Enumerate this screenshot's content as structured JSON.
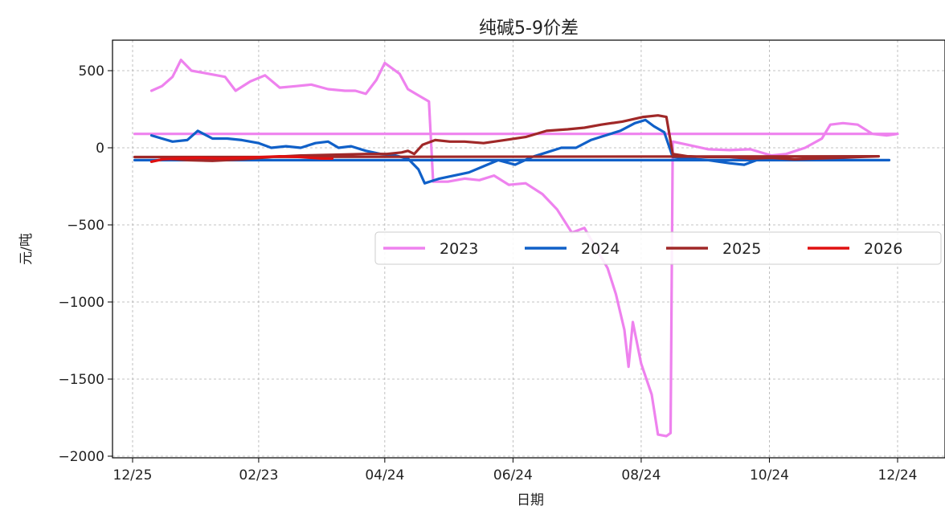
{
  "chart_data": {
    "type": "line",
    "title": "纯碱5-9价差",
    "xlabel": "日期",
    "ylabel": "元/吨",
    "xlim": [
      "12/25",
      "12/31"
    ],
    "ylim": [
      -2000,
      700
    ],
    "x_ticks": [
      "12/25",
      "02/23",
      "04/24",
      "06/24",
      "08/24",
      "10/24",
      "12/24"
    ],
    "y_ticks": [
      500,
      0,
      -500,
      -1000,
      -1500,
      -2000
    ],
    "y_tick_labels": [
      "500",
      "0",
      "−500",
      "−1000",
      "−1500",
      "−2000"
    ],
    "grid": true,
    "legend_position": "center-right",
    "series": [
      {
        "name": "2023",
        "color": "#EE82EE",
        "points": [
          [
            "01/03",
            370
          ],
          [
            "01/08",
            400
          ],
          [
            "01/13",
            460
          ],
          [
            "01/17",
            570
          ],
          [
            "01/22",
            500
          ],
          [
            "01/30",
            480
          ],
          [
            "02/07",
            460
          ],
          [
            "02/12",
            370
          ],
          [
            "02/19",
            430
          ],
          [
            "02/26",
            470
          ],
          [
            "03/05",
            390
          ],
          [
            "03/13",
            400
          ],
          [
            "03/20",
            410
          ],
          [
            "03/28",
            380
          ],
          [
            "04/05",
            370
          ],
          [
            "04/10",
            370
          ],
          [
            "04/15",
            350
          ],
          [
            "04/20",
            440
          ],
          [
            "04/24",
            550
          ],
          [
            "05/01",
            480
          ],
          [
            "05/05",
            380
          ],
          [
            "05/10",
            340
          ],
          [
            "05/15",
            300
          ],
          [
            "05/17",
            -220
          ],
          [
            "05/24",
            -220
          ],
          [
            "06/01",
            -200
          ],
          [
            "06/08",
            -210
          ],
          [
            "06/15",
            -180
          ],
          [
            "06/22",
            -240
          ],
          [
            "06/30",
            -230
          ],
          [
            "07/08",
            -300
          ],
          [
            "07/15",
            -400
          ],
          [
            "07/22",
            -550
          ],
          [
            "07/28",
            -520
          ],
          [
            "08/02",
            -640
          ],
          [
            "08/08",
            -780
          ],
          [
            "08/12",
            -950
          ],
          [
            "08/16",
            -1180
          ],
          [
            "08/18",
            -1420
          ],
          [
            "08/20",
            -1130
          ],
          [
            "08/24",
            -1400
          ],
          [
            "08/29",
            -1600
          ],
          [
            "09/01",
            -1860
          ],
          [
            "09/05",
            -1870
          ],
          [
            "09/07",
            -1850
          ],
          [
            "09/08",
            40
          ],
          [
            "09/15",
            20
          ],
          [
            "09/25",
            -10
          ],
          [
            "10/05",
            -15
          ],
          [
            "10/15",
            -10
          ],
          [
            "10/25",
            -50
          ],
          [
            "11/01",
            -40
          ],
          [
            "11/10",
            0
          ],
          [
            "11/18",
            60
          ],
          [
            "11/22",
            150
          ],
          [
            "11/28",
            160
          ],
          [
            "12/05",
            150
          ],
          [
            "12/12",
            90
          ],
          [
            "12/19",
            80
          ],
          [
            "12/24",
            90
          ],
          [
            "12/26",
            90
          ]
        ]
      },
      {
        "name": "2024",
        "color": "#1060C8",
        "points": [
          [
            "01/03",
            80
          ],
          [
            "01/08",
            60
          ],
          [
            "01/13",
            40
          ],
          [
            "01/20",
            50
          ],
          [
            "01/25",
            110
          ],
          [
            "02/01",
            60
          ],
          [
            "02/08",
            60
          ],
          [
            "02/15",
            50
          ],
          [
            "02/23",
            30
          ],
          [
            "03/01",
            0
          ],
          [
            "03/08",
            10
          ],
          [
            "03/15",
            0
          ],
          [
            "03/22",
            30
          ],
          [
            "03/28",
            40
          ],
          [
            "04/02",
            0
          ],
          [
            "04/08",
            10
          ],
          [
            "04/15",
            -20
          ],
          [
            "04/22",
            -40
          ],
          [
            "04/29",
            -50
          ],
          [
            "05/05",
            -70
          ],
          [
            "05/10",
            -140
          ],
          [
            "05/13",
            -230
          ],
          [
            "05/20",
            -200
          ],
          [
            "05/27",
            -180
          ],
          [
            "06/03",
            -160
          ],
          [
            "06/10",
            -120
          ],
          [
            "06/17",
            -80
          ],
          [
            "06/25",
            -110
          ],
          [
            "07/03",
            -60
          ],
          [
            "07/10",
            -30
          ],
          [
            "07/17",
            0
          ],
          [
            "07/24",
            0
          ],
          [
            "07/31",
            50
          ],
          [
            "08/07",
            80
          ],
          [
            "08/14",
            110
          ],
          [
            "08/21",
            160
          ],
          [
            "08/26",
            180
          ],
          [
            "08/30",
            140
          ],
          [
            "09/04",
            100
          ],
          [
            "09/08",
            -60
          ],
          [
            "09/15",
            -70
          ],
          [
            "09/25",
            -80
          ],
          [
            "10/05",
            -100
          ],
          [
            "10/12",
            -110
          ],
          [
            "10/20",
            -70
          ],
          [
            "10/30",
            -80
          ],
          [
            "11/10",
            -80
          ],
          [
            "11/20",
            -75
          ],
          [
            "12/01",
            -80
          ],
          [
            "12/12",
            -80
          ],
          [
            "12/20",
            -80
          ],
          [
            "12/26",
            -80
          ]
        ]
      },
      {
        "name": "2025",
        "color": "#A02828",
        "points": [
          [
            "01/03",
            -90
          ],
          [
            "01/10",
            -70
          ],
          [
            "01/20",
            -80
          ],
          [
            "02/01",
            -85
          ],
          [
            "02/15",
            -75
          ],
          [
            "03/01",
            -60
          ],
          [
            "03/15",
            -50
          ],
          [
            "04/01",
            -45
          ],
          [
            "04/15",
            -40
          ],
          [
            "04/25",
            -40
          ],
          [
            "05/02",
            -30
          ],
          [
            "05/05",
            -20
          ],
          [
            "05/08",
            -40
          ],
          [
            "05/12",
            20
          ],
          [
            "05/18",
            50
          ],
          [
            "05/25",
            40
          ],
          [
            "06/01",
            40
          ],
          [
            "06/10",
            30
          ],
          [
            "06/20",
            50
          ],
          [
            "06/30",
            70
          ],
          [
            "07/10",
            110
          ],
          [
            "07/20",
            120
          ],
          [
            "07/28",
            130
          ],
          [
            "08/05",
            150
          ],
          [
            "08/15",
            170
          ],
          [
            "08/25",
            200
          ],
          [
            "09/01",
            210
          ],
          [
            "09/05",
            200
          ],
          [
            "09/08",
            -40
          ],
          [
            "09/15",
            -55
          ],
          [
            "09/25",
            -60
          ],
          [
            "10/05",
            -60
          ],
          [
            "10/15",
            -70
          ],
          [
            "10/25",
            -65
          ],
          [
            "11/05",
            -75
          ],
          [
            "11/15",
            -70
          ],
          [
            "11/25",
            -65
          ],
          [
            "12/05",
            -60
          ],
          [
            "12/15",
            -55
          ],
          [
            "12/26",
            -60
          ]
        ]
      },
      {
        "name": "2026",
        "color": "#E01010",
        "points": [
          [
            "01/03",
            -90
          ],
          [
            "01/08",
            -75
          ],
          [
            "01/15",
            -70
          ],
          [
            "01/25",
            -65
          ],
          [
            "02/05",
            -70
          ],
          [
            "02/15",
            -65
          ],
          [
            "02/25",
            -60
          ],
          [
            "03/05",
            -55
          ],
          [
            "03/15",
            -60
          ],
          [
            "03/25",
            -70
          ],
          [
            "03/30",
            -70
          ]
        ]
      }
    ]
  }
}
